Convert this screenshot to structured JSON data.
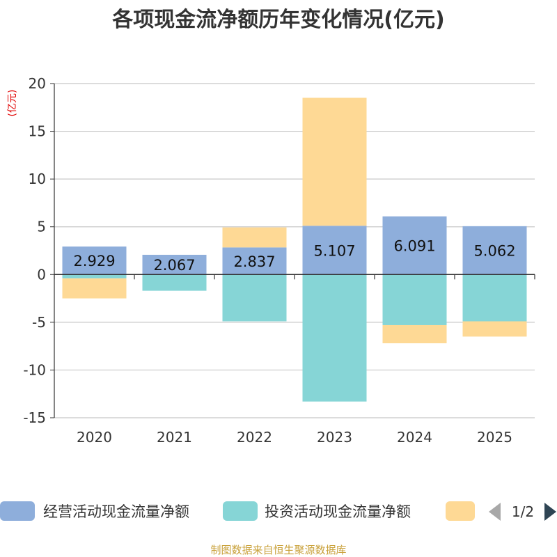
{
  "chart_data": {
    "type": "bar",
    "stacked": true,
    "title": "各项现金流净额历年变化情况(亿元)",
    "unit_label": "(亿元)",
    "categories": [
      "2020",
      "2021",
      "2022",
      "2023",
      "2024",
      "2025"
    ],
    "ylim": [
      -15,
      20
    ],
    "yticks": [
      20,
      15,
      10,
      5,
      0,
      -5,
      -10,
      -15
    ],
    "grid": true,
    "series": [
      {
        "name": "经营活动现金流量净额",
        "color": "#8eaedb",
        "values": [
          2.929,
          2.067,
          2.837,
          5.107,
          6.091,
          5.062
        ],
        "labels": [
          "2.929",
          "2.067",
          "2.837",
          "5.107",
          "6.091",
          "5.062"
        ]
      },
      {
        "name": "投资活动现金流量净额",
        "color": "#86d5d6",
        "values": [
          -0.4,
          -1.7,
          -4.9,
          -13.3,
          -5.3,
          -4.9
        ]
      },
      {
        "name": "",
        "color": "#fed995",
        "values": [
          -2.1,
          0,
          2.1,
          13.4,
          -1.9,
          -1.6
        ]
      }
    ],
    "legend": {
      "placement": "bottom",
      "page": "1/2"
    },
    "source": "制图数据来自恒生聚源数据库"
  }
}
